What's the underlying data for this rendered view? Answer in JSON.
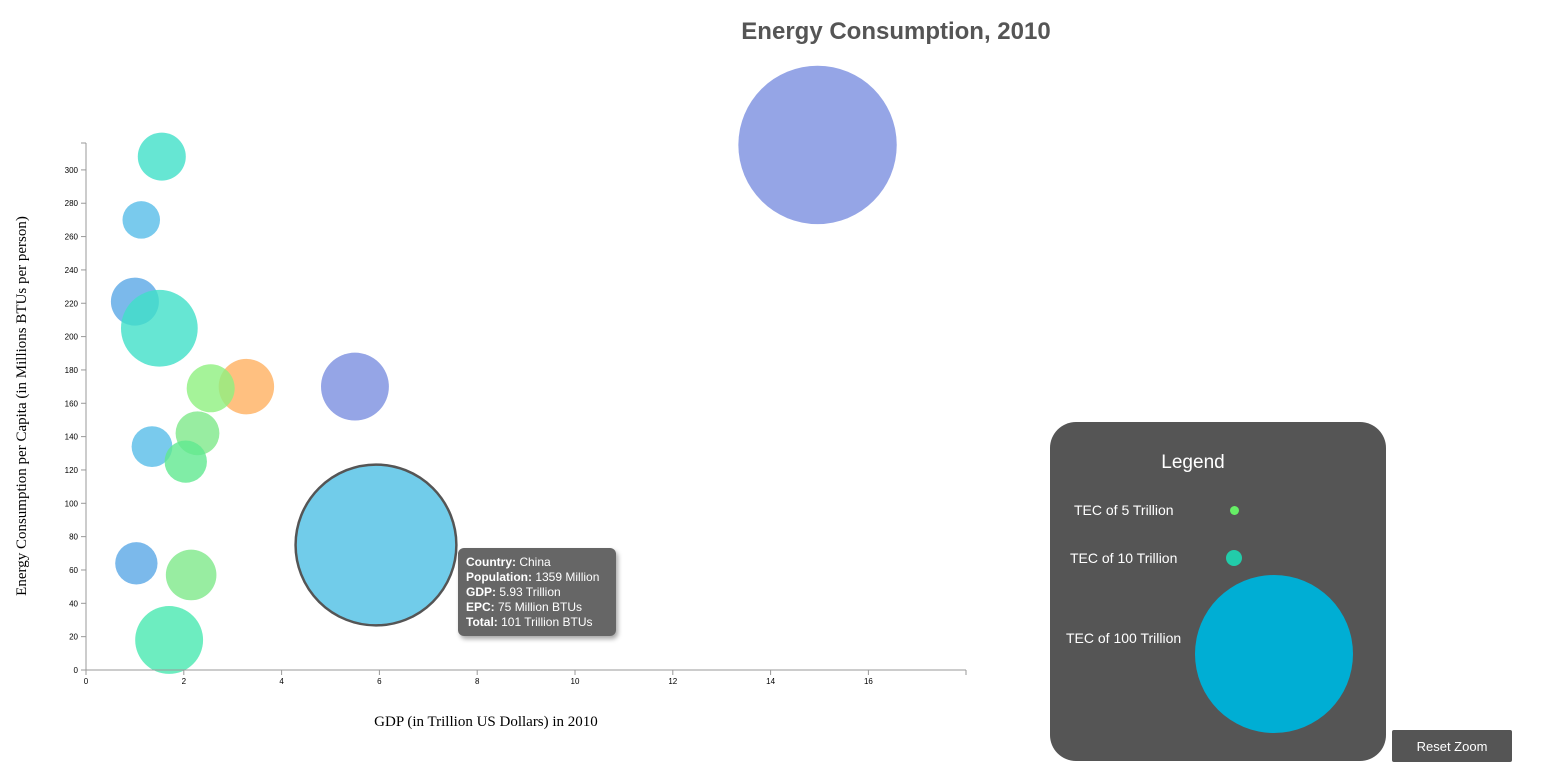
{
  "chart_data": {
    "type": "scatter",
    "title": "Energy Consumption, 2010",
    "xlabel": "GDP (in Trillion US Dollars) in 2010",
    "ylabel": "Energy Consumption per Capita (in Millions BTUs per person)",
    "xlim": [
      0,
      18
    ],
    "ylim": [
      0,
      318
    ],
    "x_ticks": [
      0,
      2,
      4,
      6,
      8,
      10,
      12,
      14,
      16
    ],
    "y_ticks": [
      0,
      20,
      40,
      60,
      80,
      100,
      120,
      140,
      160,
      180,
      200,
      220,
      240,
      260,
      280,
      300
    ],
    "grid": false,
    "size_variable": "Total Energy Consumption (Trillion BTUs)",
    "points": [
      {
        "x": 14.96,
        "y": 315,
        "size": 98,
        "color": "#7b8fe0"
      },
      {
        "x": 5.93,
        "y": 75,
        "size": 101,
        "color": "#58c3e6",
        "highlighted": true
      },
      {
        "x": 1.55,
        "y": 308,
        "size": 9,
        "color": "#40e0c8"
      },
      {
        "x": 1.13,
        "y": 270,
        "size": 5.5,
        "color": "#58bde8"
      },
      {
        "x": 1.0,
        "y": 221,
        "size": 9,
        "color": "#5aa8e6"
      },
      {
        "x": 1.5,
        "y": 205,
        "size": 23,
        "color": "#40e0c8"
      },
      {
        "x": 5.5,
        "y": 170,
        "size": 18,
        "color": "#7b8fe0"
      },
      {
        "x": 3.28,
        "y": 170,
        "size": 12,
        "color": "#ffb060"
      },
      {
        "x": 2.55,
        "y": 169,
        "size": 9,
        "color": "#8ef080"
      },
      {
        "x": 2.28,
        "y": 142,
        "size": 7.5,
        "color": "#7ee88a"
      },
      {
        "x": 1.35,
        "y": 134,
        "size": 6.5,
        "color": "#58bde8"
      },
      {
        "x": 2.04,
        "y": 125,
        "size": 7,
        "color": "#60e890"
      },
      {
        "x": 1.03,
        "y": 64,
        "size": 7,
        "color": "#5aa8e6"
      },
      {
        "x": 2.15,
        "y": 57,
        "size": 10,
        "color": "#7ee88a"
      },
      {
        "x": 1.7,
        "y": 18,
        "size": 18,
        "color": "#48e8b0"
      }
    ]
  },
  "tooltip": {
    "country_label": "Country:",
    "country_value": " China",
    "population_label": "Population:",
    "population_value": " 1359 Million",
    "gdp_label": "GDP:",
    "gdp_value": " 5.93 Trillion",
    "epc_label": "EPC:",
    "epc_value": " 75 Million BTUs",
    "total_label": "Total:",
    "total_value": " 101 Trillion BTUs"
  },
  "legend": {
    "title": "Legend",
    "items": [
      {
        "label": "TEC of 5 Trillion",
        "color": "#66ee66"
      },
      {
        "label": "TEC of 10 Trillion",
        "color": "#22ccaa"
      },
      {
        "label": "TEC of 100 Trillion",
        "color": "#00aed4"
      }
    ]
  },
  "controls": {
    "reset_zoom_label": "Reset Zoom"
  }
}
